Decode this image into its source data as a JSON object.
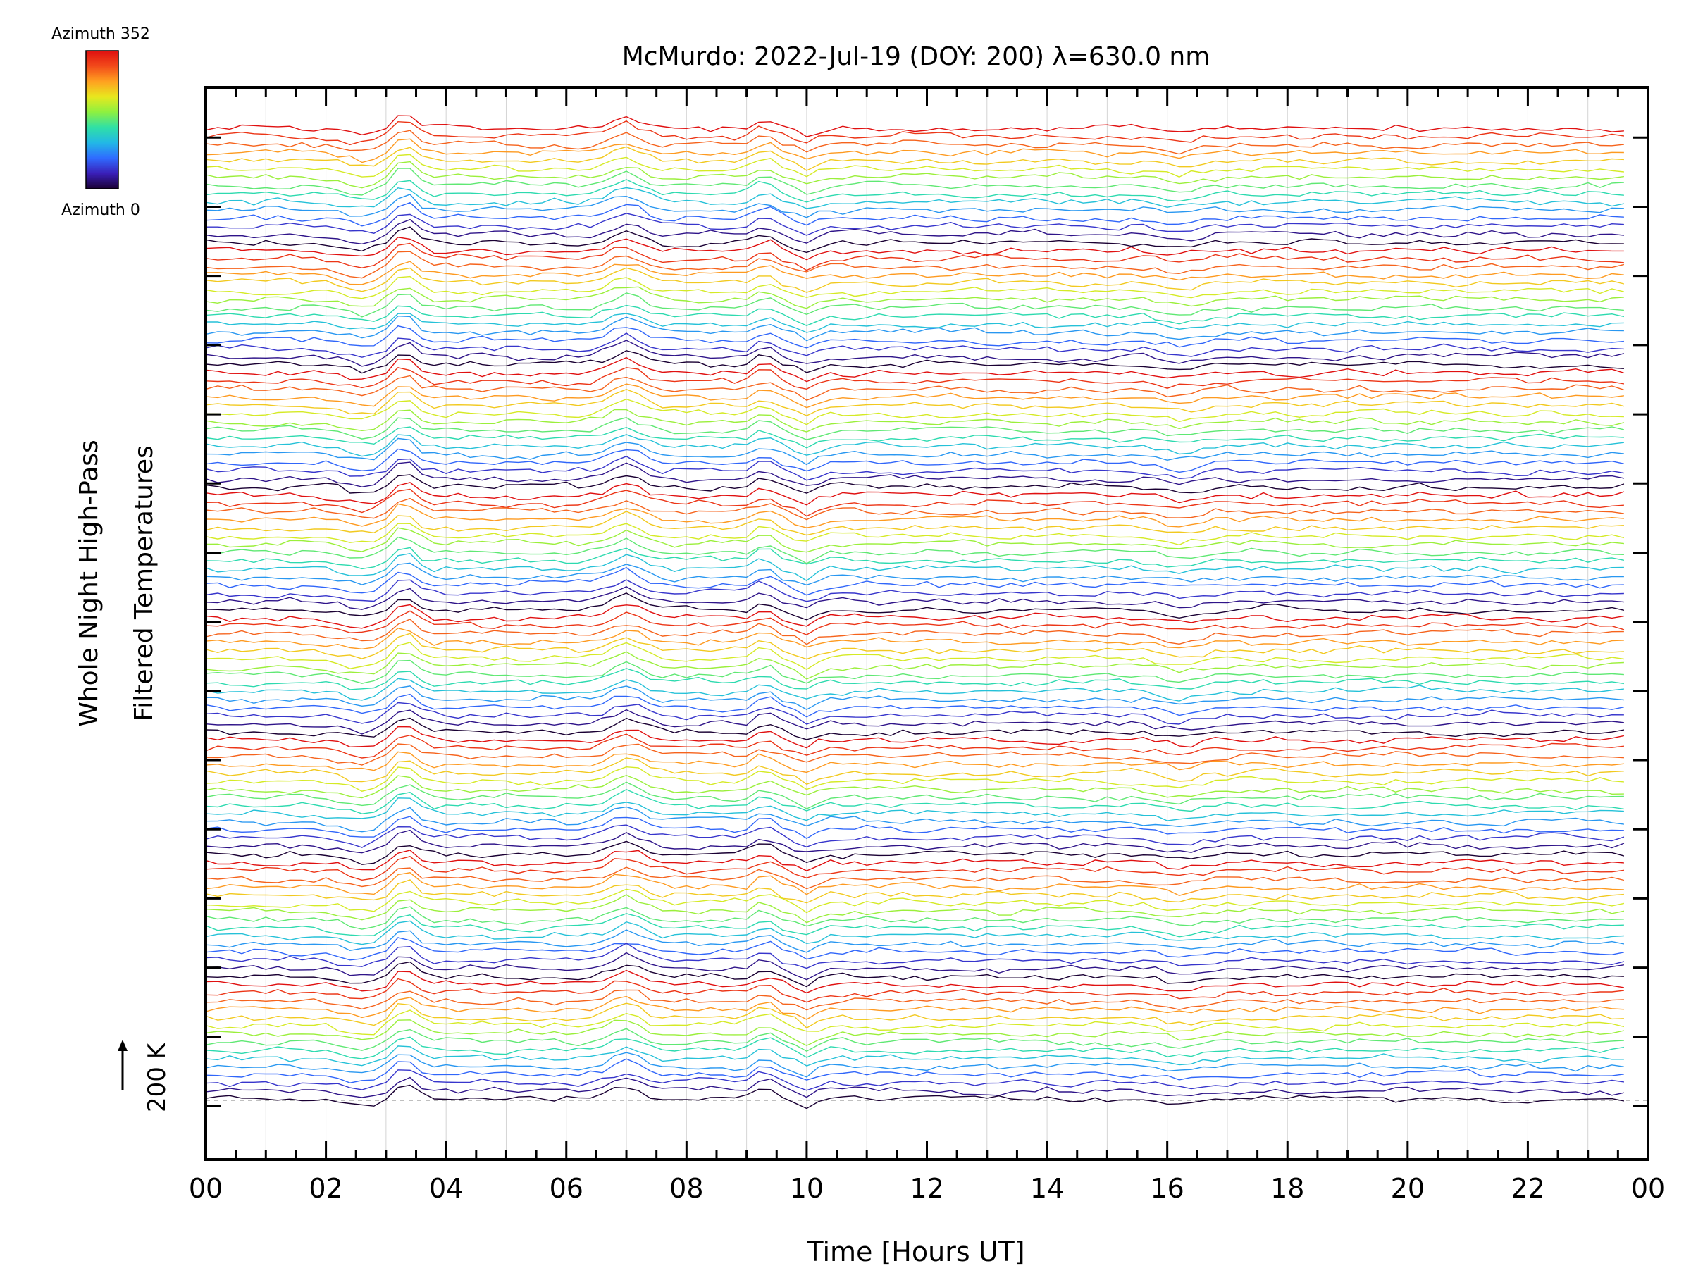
{
  "chart_data": {
    "type": "line",
    "title": "McMurdo: 2022-Jul-19 (DOY: 200) λ=630.0 nm",
    "xlabel": "Time [Hours UT]",
    "ylabel_line1": "Whole Night High-Pass",
    "ylabel_line2": "Filtered Temperatures",
    "scale_label": "200 K",
    "colorbar": {
      "top_label": "Azimuth 352",
      "bottom_label": "Azimuth 0",
      "colormap": "rainbow",
      "stops": [
        "#1a0033",
        "#3a1fb8",
        "#2f6bff",
        "#22b8e6",
        "#2fe0a6",
        "#8ef040",
        "#e8e81e",
        "#ffa020",
        "#f24a1a",
        "#e01010"
      ]
    },
    "x_ticks": [
      "00",
      "02",
      "04",
      "06",
      "08",
      "10",
      "12",
      "14",
      "16",
      "18",
      "20",
      "22",
      "00"
    ],
    "xlim": [
      0,
      24
    ],
    "n_series": 120,
    "series_groups": 8,
    "series_per_group": 15,
    "group_spacing_K": 200,
    "baseline_style": "dashed gray",
    "grid": "vertical lines at each hour",
    "legend": "colorbar top-left"
  }
}
